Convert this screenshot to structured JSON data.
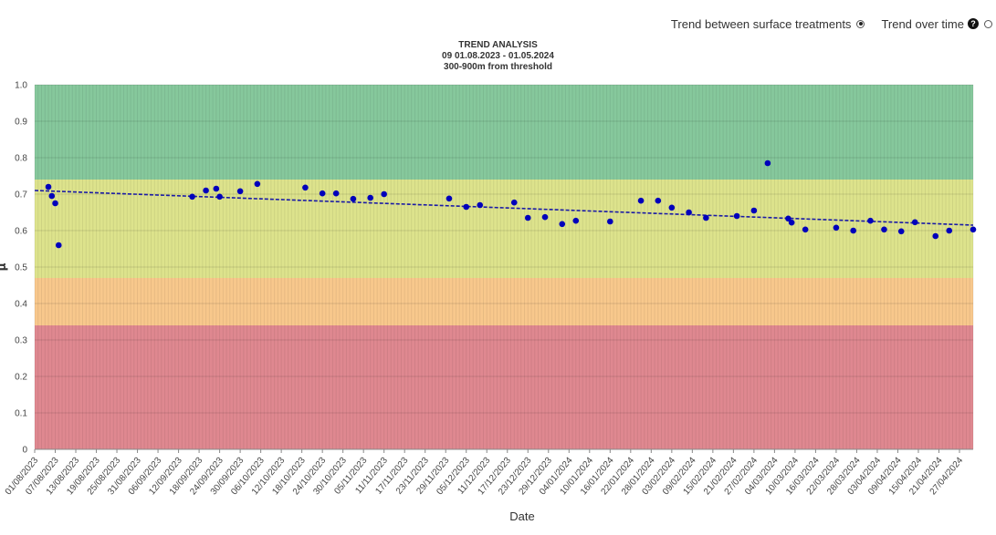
{
  "controls": {
    "option1": {
      "label": "Trend between surface treatments",
      "selected": true
    },
    "option2": {
      "label": "Trend over time",
      "selected": false,
      "icon": "help-icon"
    }
  },
  "chart_data": {
    "type": "scatter",
    "title": "TREND ANALYSIS",
    "subtitle1": "09 01.08.2023 - 01.05.2024",
    "subtitle2": "300-900m from threshold",
    "xlabel": "Date",
    "ylabel": "μ",
    "ylim": [
      0,
      1
    ],
    "yticks": [
      "0",
      "0.1",
      "0.2",
      "0.3",
      "0.4",
      "0.5",
      "0.6",
      "0.7",
      "0.8",
      "0.9",
      "1.0"
    ],
    "xlim": [
      "2023-08-01",
      "2024-05-01"
    ],
    "xticks": [
      "01/08/2023",
      "07/08/2023",
      "13/08/2023",
      "19/08/2023",
      "25/08/2023",
      "31/08/2023",
      "06/09/2023",
      "12/09/2023",
      "18/09/2023",
      "24/09/2023",
      "30/09/2023",
      "06/10/2023",
      "12/10/2023",
      "18/10/2023",
      "24/10/2023",
      "30/10/2023",
      "05/11/2023",
      "11/11/2023",
      "17/11/2023",
      "23/11/2023",
      "29/11/2023",
      "05/12/2023",
      "11/12/2023",
      "17/12/2023",
      "23/12/2023",
      "29/12/2023",
      "04/01/2024",
      "10/01/2024",
      "16/01/2024",
      "22/01/2024",
      "28/01/2024",
      "03/02/2024",
      "09/02/2024",
      "15/02/2024",
      "21/02/2024",
      "27/02/2024",
      "04/03/2024",
      "10/03/2024",
      "16/03/2024",
      "22/03/2024",
      "28/03/2024",
      "03/04/2024",
      "09/04/2024",
      "15/04/2024",
      "21/04/2024",
      "27/04/2024"
    ],
    "grid": true,
    "bands": [
      {
        "from": 0,
        "to": 0.34,
        "color": "#df8890"
      },
      {
        "from": 0.34,
        "to": 0.47,
        "color": "#f8c88c"
      },
      {
        "from": 0.47,
        "to": 0.74,
        "color": "#dde38c"
      },
      {
        "from": 0.74,
        "to": 1.0,
        "color": "#86c89c"
      }
    ],
    "point_color": "#0000bb",
    "trend_color": "#1a1aa6",
    "points": [
      [
        "2023-08-05",
        0.72
      ],
      [
        "2023-08-06",
        0.695
      ],
      [
        "2023-08-07",
        0.675
      ],
      [
        "2023-08-08",
        0.56
      ],
      [
        "2023-09-16",
        0.693
      ],
      [
        "2023-09-20",
        0.71
      ],
      [
        "2023-09-23",
        0.715
      ],
      [
        "2023-09-24",
        0.693
      ],
      [
        "2023-09-30",
        0.708
      ],
      [
        "2023-10-05",
        0.728
      ],
      [
        "2023-10-19",
        0.718
      ],
      [
        "2023-10-24",
        0.702
      ],
      [
        "2023-10-28",
        0.702
      ],
      [
        "2023-11-02",
        0.687
      ],
      [
        "2023-11-07",
        0.69
      ],
      [
        "2023-11-11",
        0.7
      ],
      [
        "2023-11-30",
        0.688
      ],
      [
        "2023-12-05",
        0.665
      ],
      [
        "2023-12-09",
        0.67
      ],
      [
        "2023-12-19",
        0.677
      ],
      [
        "2023-12-23",
        0.635
      ],
      [
        "2023-12-28",
        0.637
      ],
      [
        "2024-01-02",
        0.618
      ],
      [
        "2024-01-06",
        0.627
      ],
      [
        "2024-01-16",
        0.625
      ],
      [
        "2024-01-25",
        0.682
      ],
      [
        "2024-01-30",
        0.682
      ],
      [
        "2024-02-03",
        0.663
      ],
      [
        "2024-02-08",
        0.65
      ],
      [
        "2024-02-13",
        0.635
      ],
      [
        "2024-02-22",
        0.64
      ],
      [
        "2024-02-27",
        0.655
      ],
      [
        "2024-03-02",
        0.785
      ],
      [
        "2024-03-08",
        0.633
      ],
      [
        "2024-03-09",
        0.622
      ],
      [
        "2024-03-13",
        0.603
      ],
      [
        "2024-03-22",
        0.608
      ],
      [
        "2024-03-27",
        0.6
      ],
      [
        "2024-04-01",
        0.627
      ],
      [
        "2024-04-05",
        0.603
      ],
      [
        "2024-04-10",
        0.598
      ],
      [
        "2024-04-14",
        0.623
      ],
      [
        "2024-04-20",
        0.585
      ],
      [
        "2024-04-24",
        0.6
      ],
      [
        "2024-05-01",
        0.603
      ]
    ],
    "trend": {
      "start": [
        "2023-08-01",
        0.71
      ],
      "end": [
        "2024-05-01",
        0.615
      ]
    }
  }
}
